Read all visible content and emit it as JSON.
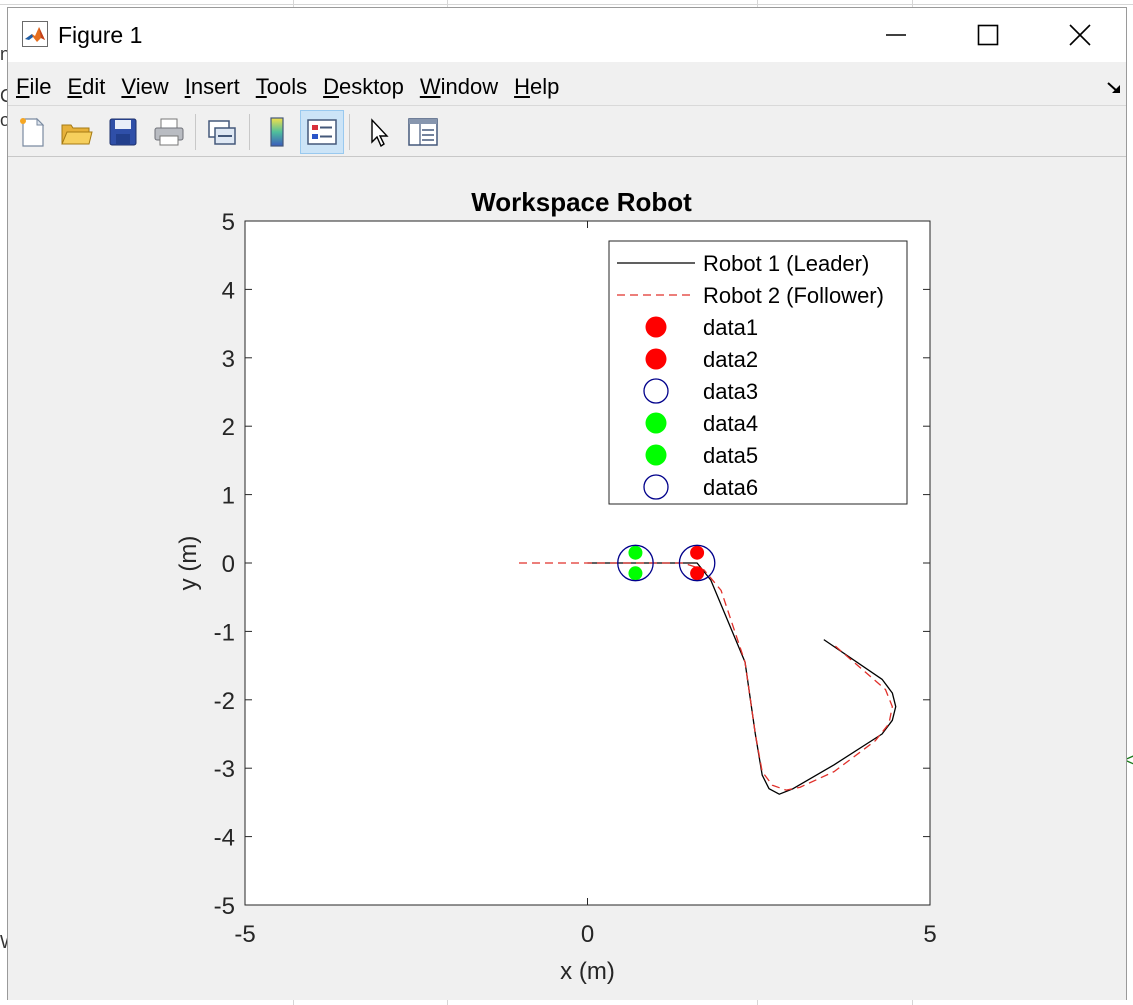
{
  "window": {
    "title": "Figure 1",
    "icon": "matlab-logo-icon",
    "controls": [
      "minimize-icon",
      "maximize-icon",
      "close-icon"
    ]
  },
  "menu": {
    "items": [
      {
        "mnemonic": "F",
        "rest": "ile"
      },
      {
        "mnemonic": "E",
        "rest": "dit"
      },
      {
        "mnemonic": "V",
        "rest": "iew"
      },
      {
        "mnemonic": "I",
        "rest": "nsert"
      },
      {
        "mnemonic": "T",
        "rest": "ools"
      },
      {
        "mnemonic": "D",
        "rest": "esktop"
      },
      {
        "mnemonic": "W",
        "rest": "indow"
      },
      {
        "mnemonic": "H",
        "rest": "elp"
      }
    ]
  },
  "toolbar": {
    "buttons": [
      "new-figure-icon",
      "open-file-icon",
      "save-icon",
      "print-icon",
      "link-plot-icon",
      "insert-colorbar-icon",
      "insert-legend-icon",
      "edit-plot-arrow-icon",
      "property-inspector-icon"
    ],
    "active": "insert-legend-icon"
  },
  "background_glyphs": [
    "n",
    "C",
    "o",
    "W",
    "<"
  ],
  "chart_data": {
    "type": "line",
    "title": "Workspace Robot",
    "xlabel": "x (m)",
    "ylabel": "y (m)",
    "xlim": [
      -5,
      5
    ],
    "ylim": [
      -5,
      5
    ],
    "xticks": [
      "-5",
      "0",
      "5"
    ],
    "yticks": [
      "5",
      "4",
      "3",
      "2",
      "1",
      "0",
      "-1",
      "-2",
      "-3",
      "-4",
      "-5"
    ],
    "grid": false,
    "legend_placement": "top-right",
    "series": [
      {
        "name": "Robot 1 (Leader)",
        "style": "solid",
        "color": "#000000",
        "x": [
          0.0,
          1.6,
          1.8,
          2.3,
          2.45,
          2.55,
          2.65,
          2.8,
          3.0,
          3.6,
          4.3,
          4.45,
          4.5,
          4.45,
          4.3,
          3.45
        ],
        "y": [
          0.0,
          0.0,
          -0.25,
          -1.45,
          -2.5,
          -3.1,
          -3.3,
          -3.38,
          -3.3,
          -2.95,
          -2.5,
          -2.3,
          -2.1,
          -1.9,
          -1.7,
          -1.12
        ]
      },
      {
        "name": "Robot 2 (Follower)",
        "style": "dashed",
        "color": "#e0302a",
        "x": [
          -1.0,
          1.4,
          1.7,
          1.95,
          2.3,
          2.45,
          2.55,
          2.7,
          2.9,
          3.1,
          3.6,
          4.2,
          4.4,
          4.45,
          4.35,
          3.6
        ],
        "y": [
          0.0,
          0.0,
          -0.1,
          -0.4,
          -1.45,
          -2.5,
          -3.05,
          -3.25,
          -3.32,
          -3.28,
          -3.05,
          -2.6,
          -2.35,
          -2.1,
          -1.85,
          -1.2
        ]
      }
    ],
    "markers": [
      {
        "name": "data1",
        "type": "filled",
        "color": "#ff0000",
        "x": 1.6,
        "y": 0.15,
        "size": 0.15
      },
      {
        "name": "data2",
        "type": "filled",
        "color": "#ff0000",
        "x": 1.6,
        "y": -0.15,
        "size": 0.15
      },
      {
        "name": "data3",
        "type": "circle",
        "color": "#00008b",
        "x": 1.6,
        "y": 0.0,
        "size": 0.38
      },
      {
        "name": "data4",
        "type": "filled",
        "color": "#00ff00",
        "x": 0.7,
        "y": 0.15,
        "size": 0.15
      },
      {
        "name": "data5",
        "type": "filled",
        "color": "#00ff00",
        "x": 0.7,
        "y": -0.15,
        "size": 0.15
      },
      {
        "name": "data6",
        "type": "circle",
        "color": "#00008b",
        "x": 0.7,
        "y": 0.0,
        "size": 0.38
      }
    ]
  }
}
